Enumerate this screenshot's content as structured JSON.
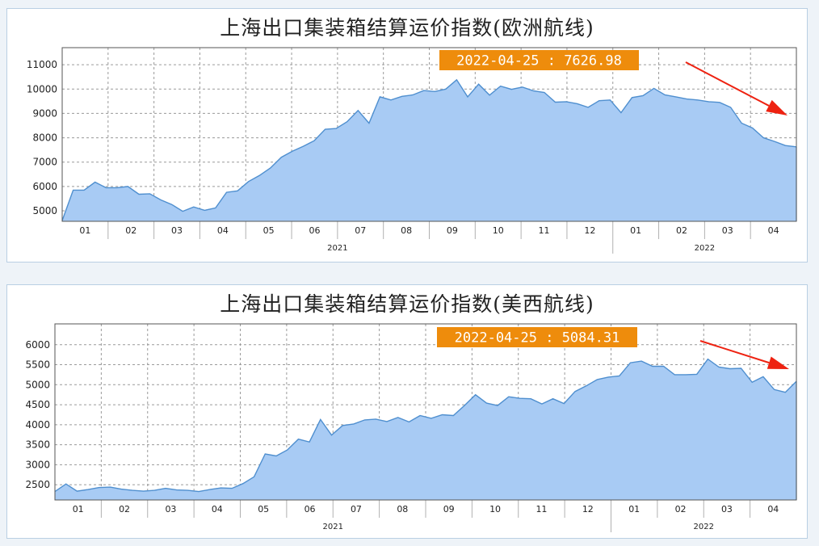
{
  "colors": {
    "area_fill": "#a8cbf4",
    "area_stroke": "#4f8fcf",
    "callout_bg": "#ee8c0c",
    "arrow": "#ee2211",
    "grid": "#9a9a9a"
  },
  "chart_data": [
    {
      "type": "area",
      "title": "上海出口集装箱结算运价指数(欧洲航线)",
      "xlabel": "",
      "ylabel": "",
      "ylim": [
        4570,
        11700
      ],
      "yticks": [
        5000,
        6000,
        7000,
        8000,
        9000,
        10000,
        11000
      ],
      "month_labels": [
        "01",
        "02",
        "03",
        "04",
        "05",
        "06",
        "07",
        "08",
        "09",
        "10",
        "11",
        "12",
        "01",
        "02",
        "03",
        "04"
      ],
      "year_labels": [
        "2021",
        "2022"
      ],
      "callout": {
        "date": "2022-04-25",
        "value": "7626.98",
        "separator": ":"
      },
      "grid": true,
      "series": [
        {
          "values": [
            4600,
            5850,
            5850,
            6180,
            5950,
            5950,
            6000,
            5680,
            5700,
            5450,
            5260,
            4980,
            5160,
            5020,
            5120,
            5760,
            5820,
            6200,
            6450,
            6760,
            7200,
            7450,
            7650,
            7880,
            8350,
            8380,
            8660,
            9120,
            8600,
            9680,
            9550,
            9700,
            9760,
            9940,
            9900,
            10000,
            10380,
            9680,
            10200,
            9750,
            10120,
            9990,
            10080,
            9930,
            9860,
            9460,
            9480,
            9400,
            9250,
            9520,
            9550,
            9030,
            9650,
            9730,
            10030,
            9760,
            9680,
            9590,
            9550,
            9480,
            9450,
            9250,
            8600,
            8400,
            8000,
            7850,
            7680,
            7627
          ]
        }
      ]
    },
    {
      "type": "area",
      "title": "上海出口集装箱结算运价指数(美西航线)",
      "xlabel": "",
      "ylabel": "",
      "ylim": [
        2120,
        6520
      ],
      "yticks": [
        2500,
        3000,
        3500,
        4000,
        4500,
        5000,
        5500,
        6000
      ],
      "month_labels": [
        "01",
        "02",
        "03",
        "04",
        "05",
        "06",
        "07",
        "08",
        "09",
        "10",
        "11",
        "12",
        "01",
        "02",
        "03",
        "04"
      ],
      "year_labels": [
        "2021",
        "2022"
      ],
      "callout": {
        "date": "2022-04-25",
        "value": "5084.31",
        "separator": ":"
      },
      "grid": true,
      "series": [
        {
          "values": [
            2330,
            2520,
            2340,
            2380,
            2430,
            2440,
            2390,
            2360,
            2340,
            2360,
            2410,
            2370,
            2360,
            2330,
            2380,
            2420,
            2410,
            2530,
            2700,
            3270,
            3220,
            3370,
            3640,
            3570,
            4130,
            3740,
            3980,
            4020,
            4120,
            4140,
            4080,
            4180,
            4070,
            4230,
            4160,
            4250,
            4230,
            4480,
            4750,
            4540,
            4480,
            4700,
            4660,
            4650,
            4520,
            4650,
            4530,
            4830,
            4970,
            5130,
            5190,
            5220,
            5550,
            5590,
            5460,
            5460,
            5250,
            5250,
            5260,
            5640,
            5440,
            5400,
            5410,
            5060,
            5200,
            4880,
            4810,
            5084
          ]
        }
      ]
    }
  ]
}
